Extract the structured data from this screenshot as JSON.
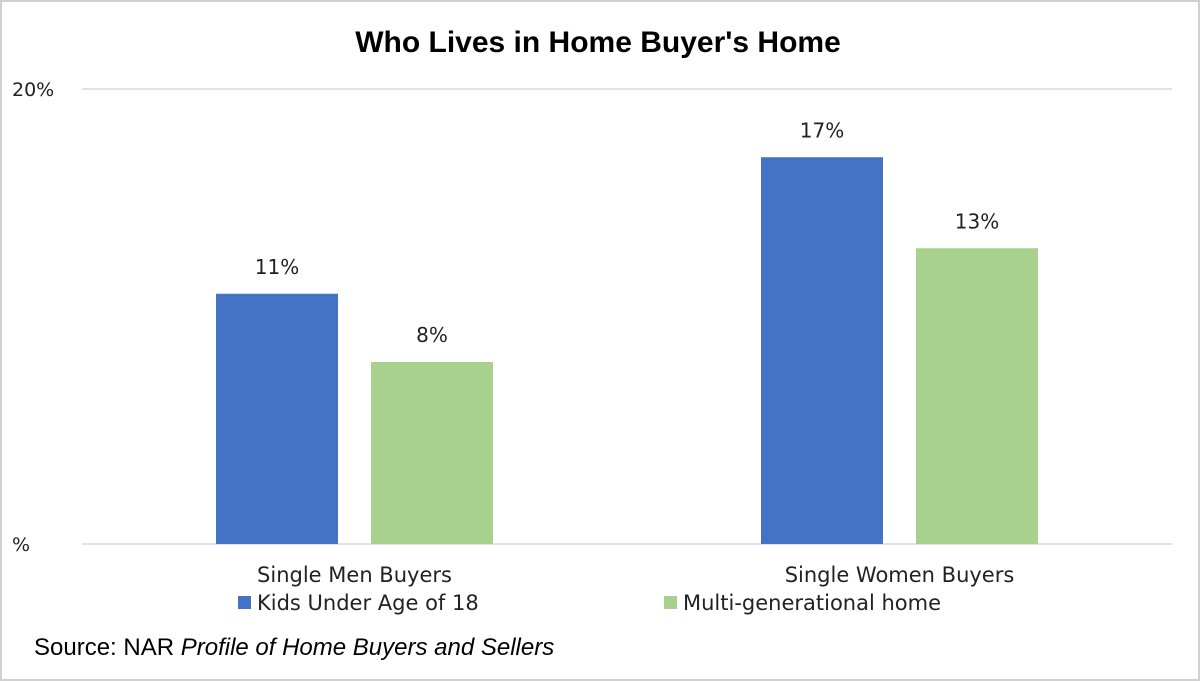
{
  "chart_data": {
    "type": "bar",
    "title": "Who Lives in Home Buyer's Home",
    "categories": [
      "Single Men Buyers",
      "Single Women Buyers"
    ],
    "series": [
      {
        "name": "Kids Under Age of 18",
        "values": [
          11,
          17
        ],
        "color": "#4472C4"
      },
      {
        "name": "Multi-generational home",
        "values": [
          8,
          13
        ],
        "color": "#A9D18E"
      }
    ],
    "data_labels": [
      [
        "11%",
        "17%"
      ],
      [
        "8%",
        "13%"
      ]
    ],
    "y_ticks": [
      {
        "value": 0,
        "label": "%"
      },
      {
        "value": 20,
        "label": "20%"
      }
    ],
    "ylim": [
      0,
      20
    ],
    "xlabel": "",
    "ylabel": "",
    "grid": true,
    "legend_position": "bottom"
  },
  "source": {
    "prefix": "Source: NAR ",
    "italic": "Profile of Home Buyers and Sellers"
  }
}
